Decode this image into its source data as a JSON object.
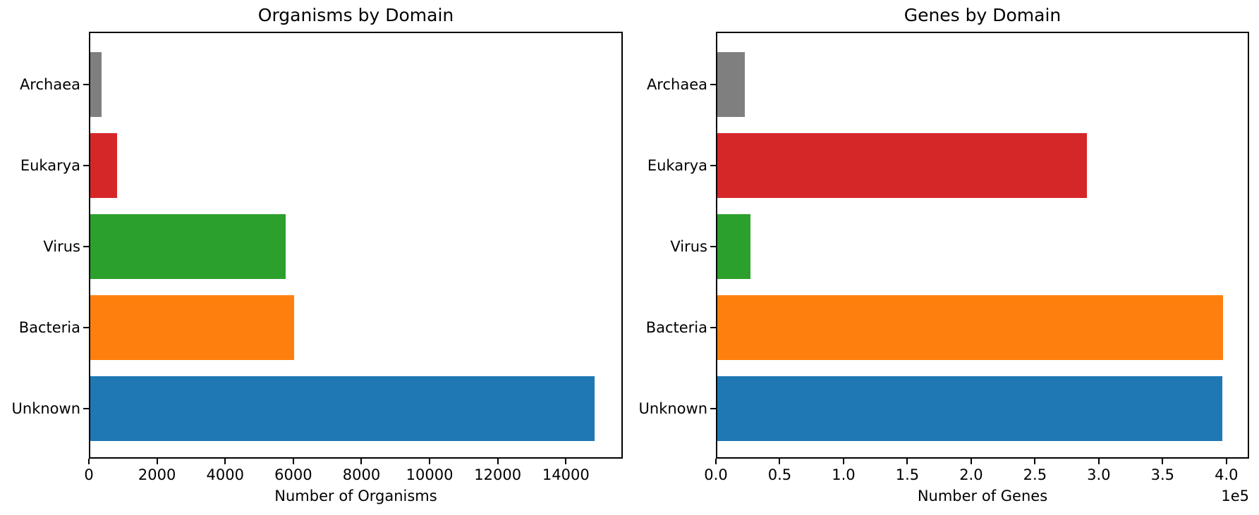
{
  "figure": {
    "background_color": "#ffffff",
    "text_color": "#000000"
  },
  "chart_data": [
    {
      "type": "bar",
      "orientation": "horizontal",
      "title": "Organisms by Domain",
      "xlabel": "Number of Organisms",
      "categories": [
        "Archaea",
        "Eukarya",
        "Virus",
        "Bacteria",
        "Unknown"
      ],
      "values": [
        380,
        830,
        5770,
        6020,
        14840
      ],
      "colors": [
        "#7f7f7f",
        "#d62728",
        "#2ca02c",
        "#ff7f0e",
        "#1f77b4"
      ],
      "xlim": [
        0,
        15670
      ],
      "xticks": [
        0,
        2000,
        4000,
        6000,
        8000,
        10000,
        12000,
        14000
      ],
      "xtick_labels": [
        "0",
        "2000",
        "4000",
        "6000",
        "8000",
        "10000",
        "12000",
        "14000"
      ],
      "grid": false,
      "legend": null
    },
    {
      "type": "bar",
      "orientation": "horizontal",
      "title": "Genes by Domain",
      "xlabel": "Number of Genes",
      "categories": [
        "Archaea",
        "Eukarya",
        "Virus",
        "Bacteria",
        "Unknown"
      ],
      "values": [
        22500,
        290500,
        27000,
        397300,
        397000
      ],
      "colors": [
        "#7f7f7f",
        "#d62728",
        "#2ca02c",
        "#ff7f0e",
        "#1f77b4"
      ],
      "xlim": [
        0,
        417800
      ],
      "xticks": [
        0,
        50000,
        100000,
        150000,
        200000,
        250000,
        300000,
        350000,
        400000
      ],
      "xtick_labels": [
        "0.0",
        "0.5",
        "1.0",
        "1.5",
        "2.0",
        "2.5",
        "3.0",
        "3.5",
        "4.0"
      ],
      "offset_text": "1e5",
      "grid": false,
      "legend": null
    }
  ]
}
